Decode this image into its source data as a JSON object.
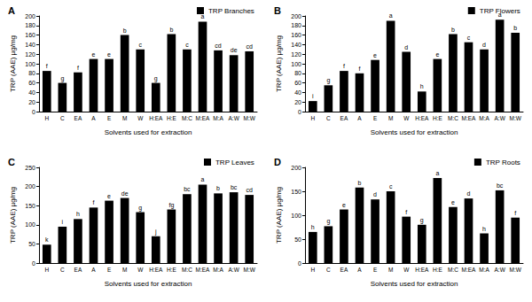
{
  "chart_data": [
    {
      "type": "bar",
      "title": "A",
      "x_label": "Solvents used for extraction",
      "y_label": "TRP (AAE) µg/mg",
      "categories": [
        "H",
        "C",
        "EA",
        "A",
        "E",
        "M",
        "W",
        "H:EA",
        "H:E",
        "M:C",
        "M:EA",
        "M:A",
        "A:W",
        "M:W"
      ],
      "series": [
        {
          "name": "TRP Branches",
          "color": "#000000",
          "values": [
            85,
            60,
            82,
            110,
            110,
            160,
            130,
            60,
            162,
            130,
            188,
            128,
            118,
            126
          ]
        }
      ],
      "annotations": [
        "f",
        "g",
        "f",
        "e",
        "e",
        "b",
        "c",
        "g",
        "b",
        "c",
        "a",
        "cd",
        "de",
        "cd"
      ],
      "ylim": [
        0,
        200
      ],
      "yticks": [
        0,
        20,
        40,
        60,
        80,
        100,
        120,
        140,
        160,
        180,
        200
      ],
      "grid": false,
      "legend": "top-right"
    },
    {
      "type": "bar",
      "title": "B",
      "x_label": "Solvents used for extraction",
      "y_label": "TRP (AAE) µg/mg",
      "categories": [
        "H",
        "C",
        "EA",
        "A",
        "E",
        "M",
        "W",
        "H:EA",
        "H:E",
        "M:C",
        "M:EA",
        "M:A",
        "A:W",
        "M:W"
      ],
      "series": [
        {
          "name": "TRP Flowers",
          "color": "#000000",
          "values": [
            22,
            55,
            85,
            80,
            108,
            190,
            125,
            42,
            110,
            162,
            145,
            130,
            192,
            165
          ]
        }
      ],
      "annotations": [
        "i",
        "g",
        "f",
        "f",
        "e",
        "a",
        "d",
        "h",
        "e",
        "b",
        "c",
        "d",
        "a",
        "b"
      ],
      "ylim": [
        0,
        200
      ],
      "yticks": [
        0,
        20,
        40,
        60,
        80,
        100,
        120,
        140,
        160,
        180,
        200
      ],
      "grid": false,
      "legend": "top-right"
    },
    {
      "type": "bar",
      "title": "C",
      "x_label": "Solvents used for extraction",
      "y_label": "TRP (AAE) µg/mg",
      "categories": [
        "H",
        "C",
        "EA",
        "A",
        "E",
        "M",
        "W",
        "H:EA",
        "H:E",
        "M:C",
        "M:EA",
        "M:A",
        "A:W",
        "M:W"
      ],
      "series": [
        {
          "name": "TRP Leaves",
          "color": "#000000",
          "values": [
            48,
            95,
            115,
            145,
            163,
            170,
            133,
            70,
            140,
            180,
            205,
            182,
            185,
            178
          ]
        }
      ],
      "annotations": [
        "k",
        "i",
        "h",
        "f",
        "e",
        "de",
        "g",
        "j",
        "fg",
        "bc",
        "a",
        "b",
        "bc",
        "cd"
      ],
      "ylim": [
        0,
        250
      ],
      "yticks": [
        0,
        50,
        100,
        150,
        200,
        250
      ],
      "grid": false,
      "legend": "top-right"
    },
    {
      "type": "bar",
      "title": "D",
      "x_label": "Solvents used for extraction",
      "y_label": "TRP (AAE) µg/mg",
      "categories": [
        "H",
        "C",
        "EA",
        "A",
        "E",
        "M",
        "W",
        "H:EA",
        "H:E",
        "M:C",
        "M:EA",
        "M:A",
        "A:W",
        "M:W"
      ],
      "series": [
        {
          "name": "TRP Roots",
          "color": "#000000",
          "values": [
            65,
            77,
            112,
            158,
            133,
            150,
            97,
            80,
            178,
            117,
            135,
            62,
            152,
            95
          ]
        }
      ],
      "annotations": [
        "h",
        "g",
        "e",
        "b",
        "d",
        "c",
        "f",
        "g",
        "a",
        "e",
        "d",
        "h",
        "bc",
        "f"
      ],
      "ylim": [
        0,
        200
      ],
      "yticks": [
        0,
        50,
        100,
        150,
        200
      ],
      "grid": false,
      "legend": "top-right"
    }
  ]
}
